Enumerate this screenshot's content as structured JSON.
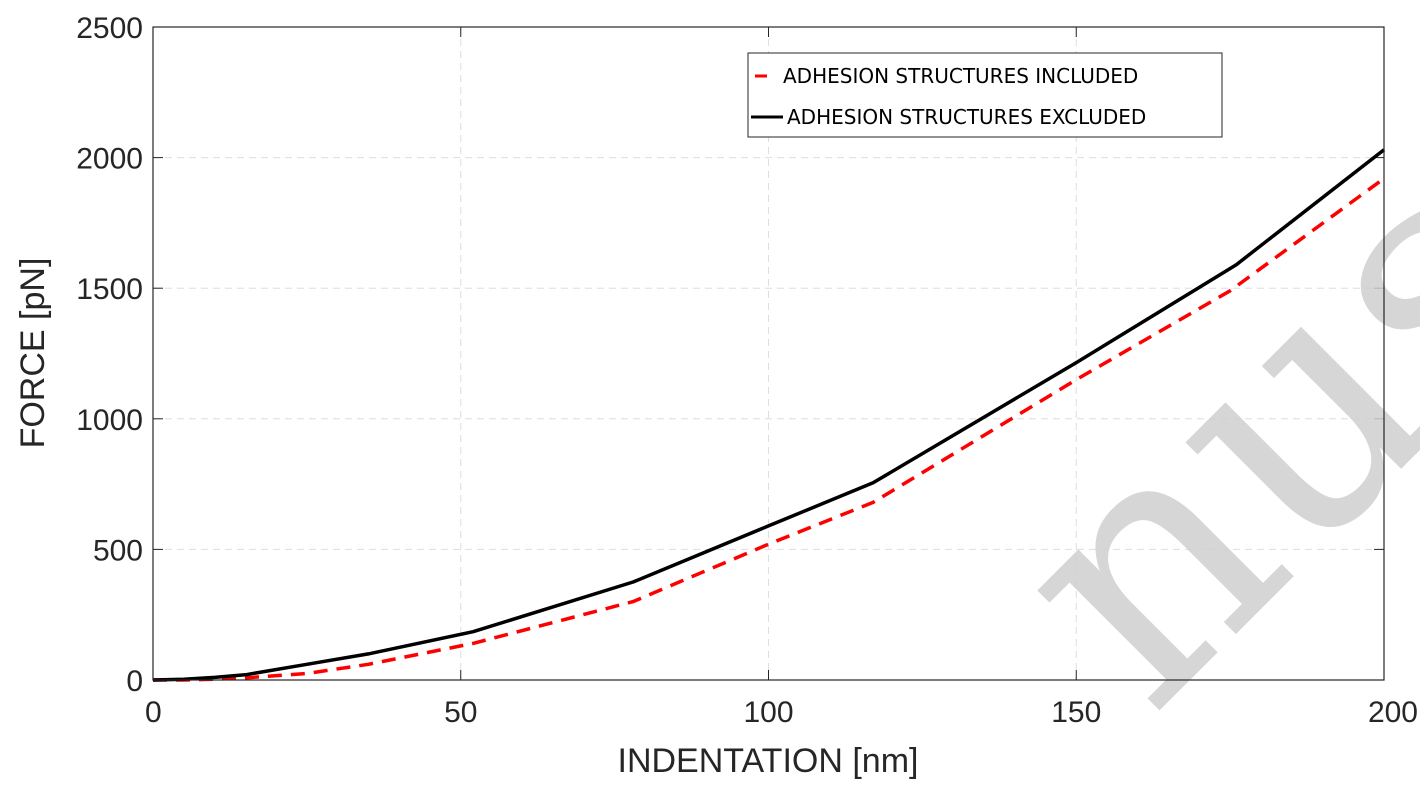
{
  "chart_data": {
    "type": "line",
    "title": "",
    "xlabel": "INDENTATION [nm]",
    "ylabel": "FORCE [pN]",
    "xlim": [
      0,
      200
    ],
    "ylim": [
      0,
      2500
    ],
    "xticks": [
      0,
      50,
      100,
      150,
      200
    ],
    "yticks": [
      0,
      500,
      1000,
      1500,
      2000,
      2500
    ],
    "grid": true,
    "legend_position": "top-right",
    "series": [
      {
        "name": "ADHESION STRUCTURES INCLUDED",
        "color": "#ff0000",
        "style": "dashed",
        "x": [
          0,
          5,
          10,
          15,
          25,
          35,
          52,
          78,
          100,
          117,
          150,
          175,
          200
        ],
        "y": [
          0,
          0,
          3,
          8,
          25,
          60,
          140,
          300,
          520,
          680,
          1150,
          1490,
          1920
        ]
      },
      {
        "name": "ADHESION STRUCTURES EXCLUDED",
        "color": "#000000",
        "style": "solid",
        "x": [
          0,
          5,
          10,
          15,
          25,
          35,
          52,
          78,
          100,
          117,
          150,
          176,
          200
        ],
        "y": [
          0,
          3,
          10,
          20,
          60,
          100,
          185,
          375,
          590,
          755,
          1215,
          1590,
          2030
        ]
      }
    ]
  },
  "watermark": {
    "text": "nuscript",
    "color": "#cfcfcf"
  }
}
